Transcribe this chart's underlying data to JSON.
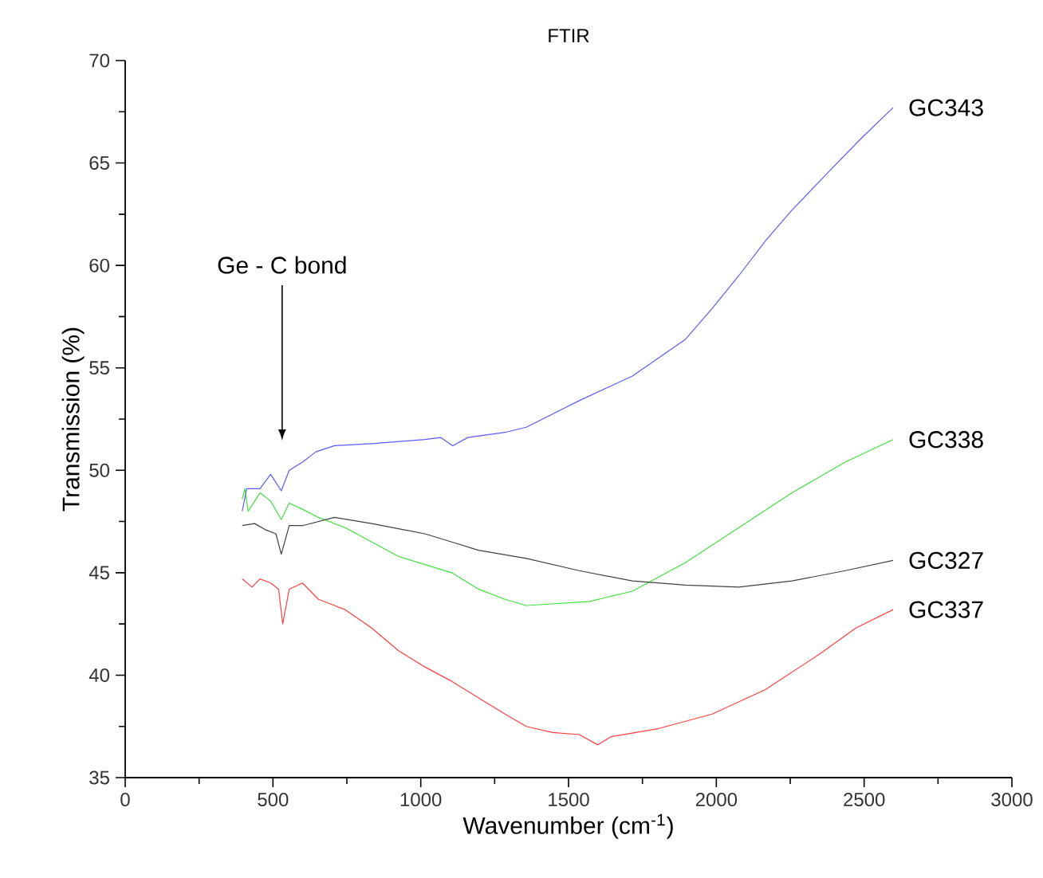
{
  "chart_data": {
    "type": "line",
    "title": "FTIR",
    "xlabel": "Wavenumber (cm$^{-1}$)",
    "ylabel": "Transmission (%)",
    "xlim": [
      0,
      3000
    ],
    "ylim": [
      35,
      70
    ],
    "xticks": [
      0,
      500,
      1000,
      1500,
      2000,
      2500,
      3000
    ],
    "yticks": [
      35,
      40,
      45,
      50,
      55,
      60,
      65,
      70
    ],
    "grid": false,
    "legend": false,
    "marker": "none",
    "line_style": "solid",
    "annotations": [
      "Ge - C bond"
    ],
    "series": [
      {
        "name": "GC343",
        "color": "#5a5aff",
        "x": [
          396,
          411,
          456,
          492,
          528,
          555,
          600,
          645,
          708,
          834,
          1014,
          1068,
          1108,
          1159,
          1285,
          1357,
          1536,
          1716,
          1896,
          1986,
          2076,
          2166,
          2256,
          2382,
          2490,
          2598
        ],
        "values": [
          48.0,
          49.1,
          49.1,
          49.8,
          49.0,
          50.0,
          50.4,
          50.9,
          51.2,
          51.3,
          51.5,
          51.6,
          51.2,
          51.6,
          51.85,
          52.1,
          53.4,
          54.6,
          56.4,
          57.9,
          59.5,
          61.2,
          62.7,
          64.6,
          66.2,
          67.7
        ]
      },
      {
        "name": "GC338",
        "color": "#40e040",
        "x": [
          396,
          405,
          416,
          456,
          492,
          528,
          555,
          600,
          654,
          744,
          834,
          924,
          1014,
          1105,
          1195,
          1285,
          1357,
          1572,
          1716,
          1896,
          2076,
          2256,
          2436,
          2598
        ],
        "values": [
          48.6,
          49.1,
          48.0,
          48.9,
          48.5,
          47.6,
          48.4,
          48.1,
          47.7,
          47.2,
          46.5,
          45.8,
          45.4,
          45.0,
          44.2,
          43.7,
          43.4,
          43.6,
          44.1,
          45.5,
          47.2,
          48.9,
          50.4,
          51.5
        ]
      },
      {
        "name": "GC327",
        "color": "#404040",
        "x": [
          396,
          438,
          474,
          510,
          528,
          555,
          600,
          708,
          834,
          1014,
          1105,
          1195,
          1357,
          1536,
          1716,
          1896,
          2076,
          2256,
          2436,
          2598
        ],
        "values": [
          47.3,
          47.4,
          47.1,
          46.9,
          45.9,
          47.3,
          47.3,
          47.7,
          47.4,
          46.9,
          46.5,
          46.1,
          45.7,
          45.1,
          44.6,
          44.4,
          44.3,
          44.6,
          45.1,
          45.6
        ]
      },
      {
        "name": "GC337",
        "color": "#ff4040",
        "x": [
          396,
          429,
          456,
          492,
          519,
          533,
          555,
          600,
          654,
          744,
          834,
          924,
          1014,
          1105,
          1195,
          1285,
          1357,
          1446,
          1536,
          1599,
          1644,
          1806,
          1986,
          2166,
          2346,
          2472,
          2598
        ],
        "values": [
          44.7,
          44.3,
          44.7,
          44.5,
          44.2,
          42.5,
          44.2,
          44.5,
          43.7,
          43.2,
          42.3,
          41.2,
          40.4,
          39.7,
          38.9,
          38.1,
          37.5,
          37.2,
          37.1,
          36.6,
          37.0,
          37.4,
          38.1,
          39.3,
          41.0,
          42.3,
          43.2
        ]
      }
    ]
  }
}
